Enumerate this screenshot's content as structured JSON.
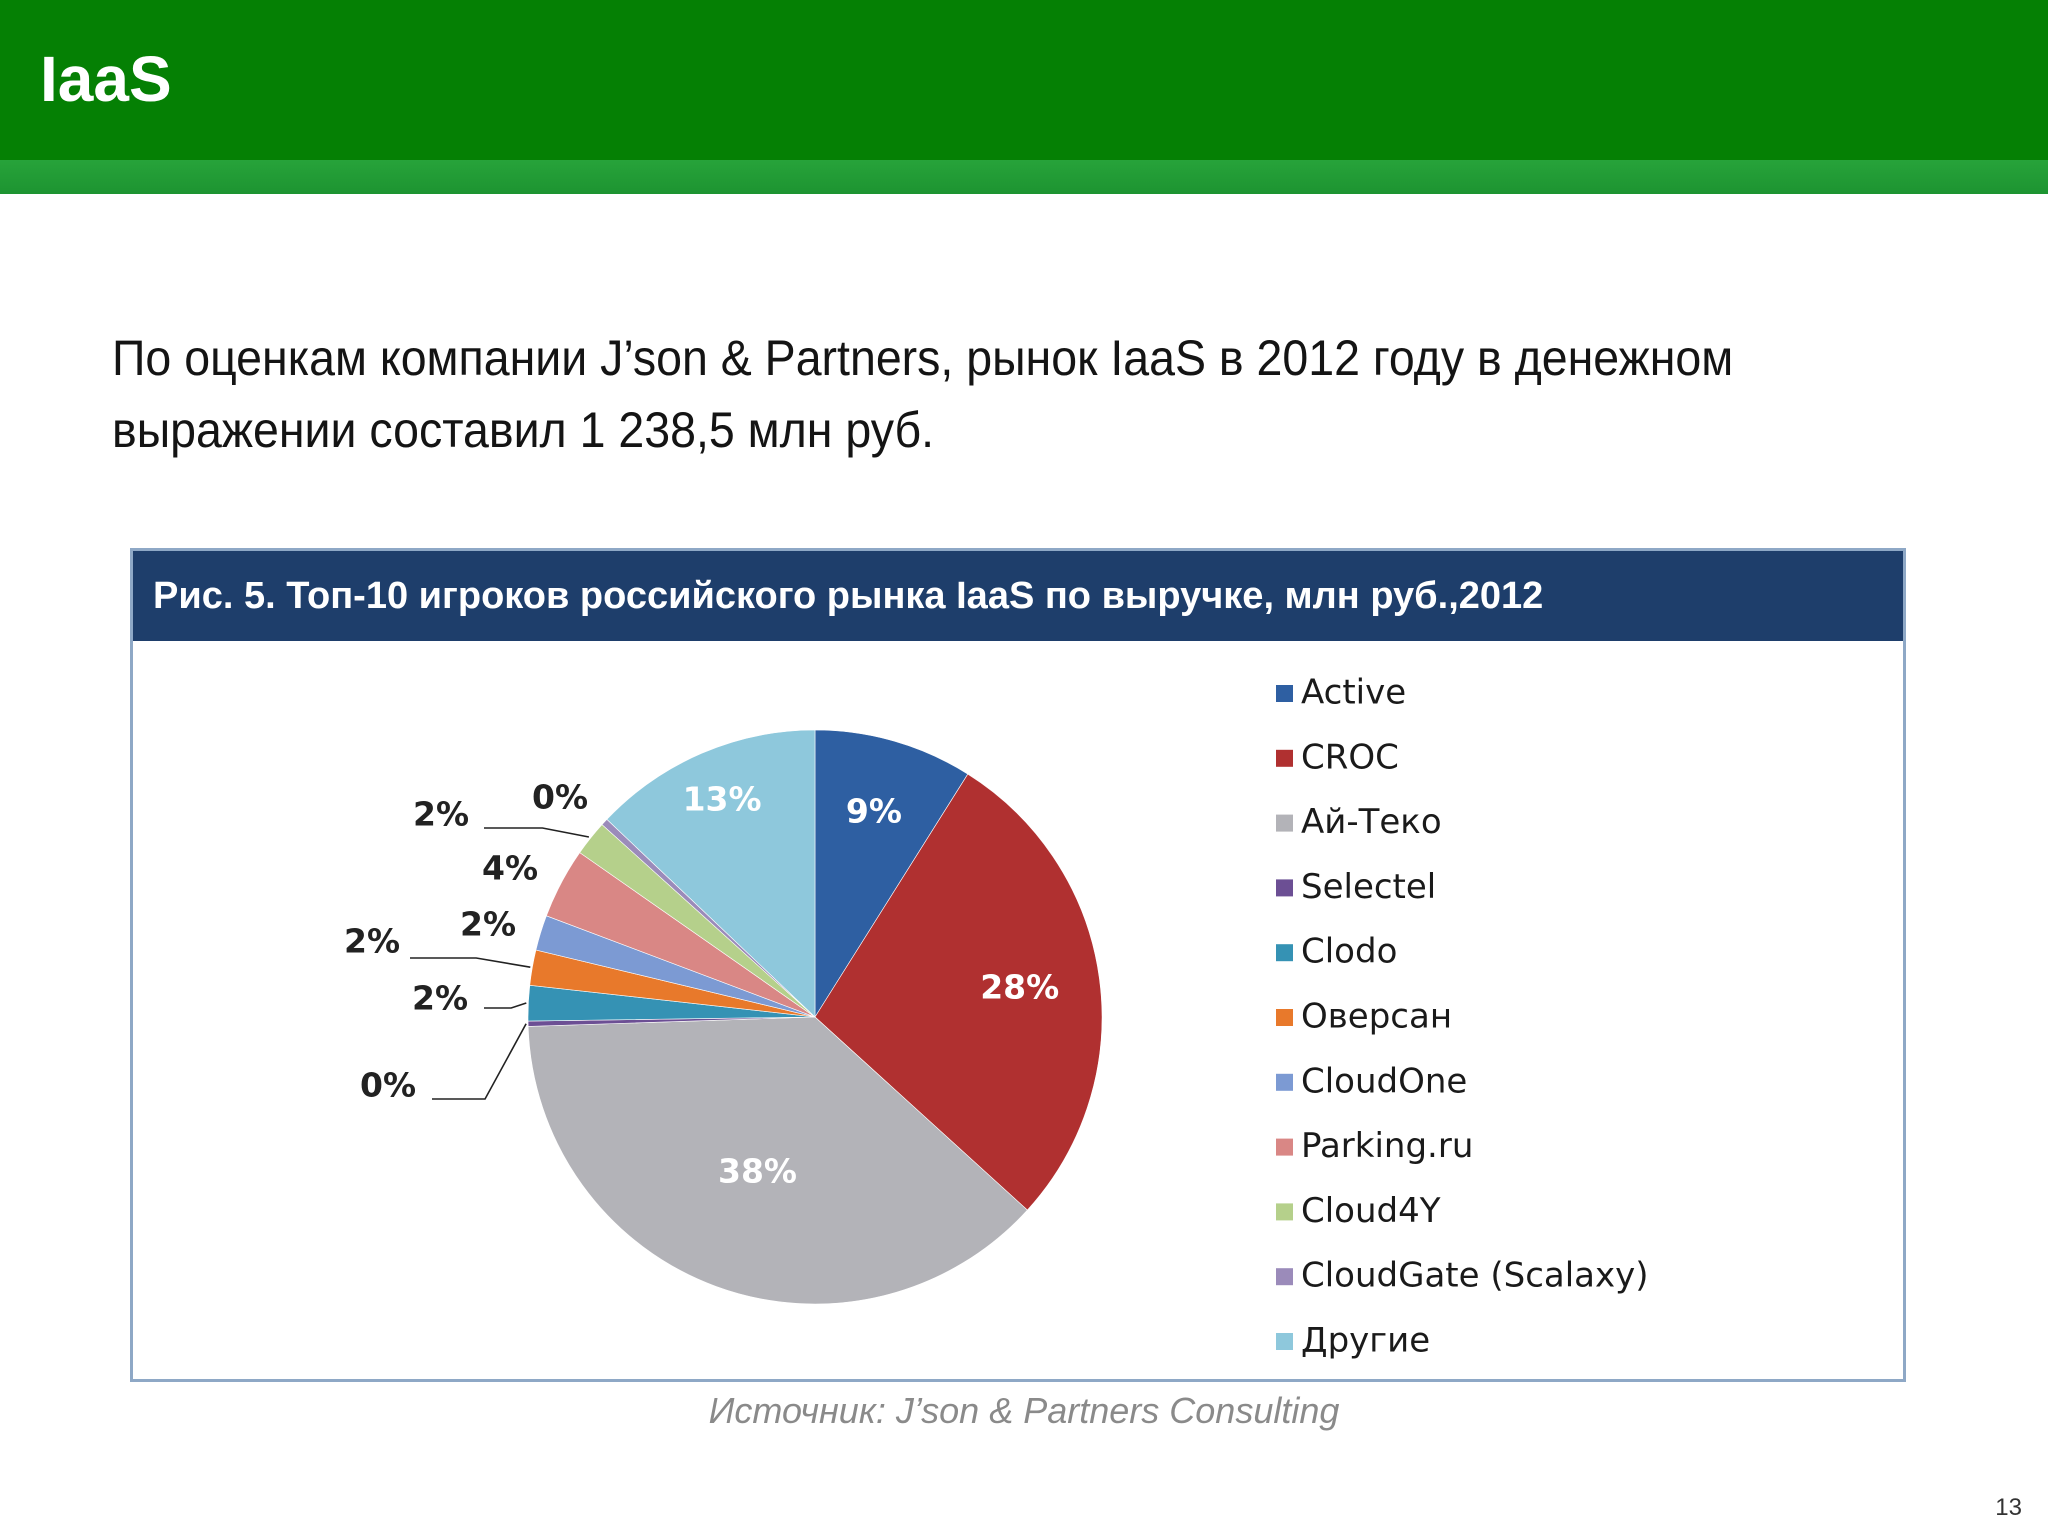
{
  "slide": {
    "title": "IaaS",
    "text": "По оценкам компании J’son & Partners, рынок IaaS в 2012 году в денежном выражении составил 1 238,5 млн руб.",
    "source": "Источник: J’son & Partners Consulting",
    "page_number": "13"
  },
  "chart_data": {
    "type": "pie",
    "title": "Рис. 5. Топ-10 игроков российского рынка IaaS по выручке, млн руб.,2012",
    "legend_position": "right",
    "slices": [
      {
        "name": "Active",
        "value": 9,
        "label": "9%",
        "color": "#2e5fa2"
      },
      {
        "name": "CROC",
        "value": 28,
        "label": "28%",
        "color": "#b03030"
      },
      {
        "name": "Ай-Теко",
        "value": 38,
        "label": "38%",
        "color": "#b3b3b8"
      },
      {
        "name": "Selectel",
        "value": 0.3,
        "label": "0%",
        "color": "#6c4f94"
      },
      {
        "name": "Clodo",
        "value": 2,
        "label": "2%",
        "color": "#3592b4"
      },
      {
        "name": "Оверсан",
        "value": 2,
        "label": "2%",
        "color": "#e8792b"
      },
      {
        "name": "CloudOne",
        "value": 2,
        "label": "2%",
        "color": "#7c9ad3"
      },
      {
        "name": "Parking.ru",
        "value": 4,
        "label": "4%",
        "color": "#d98785"
      },
      {
        "name": "Cloud4Y",
        "value": 2,
        "label": "2%",
        "color": "#b5d08b"
      },
      {
        "name": "CloudGate (Scalaxy)",
        "value": 0.4,
        "label": "0%",
        "color": "#9b8bba"
      },
      {
        "name": "Другие",
        "value": 13,
        "label": "13%",
        "color": "#8ec8dc"
      }
    ],
    "legend_order": [
      "Active",
      "CROC",
      "Ай-Теко",
      "Selectel",
      "Clodo",
      "Оверсан",
      "CloudOne",
      "Parking.ru",
      "Cloud4Y",
      "CloudGate (Scalaxy)",
      "Другие"
    ]
  }
}
